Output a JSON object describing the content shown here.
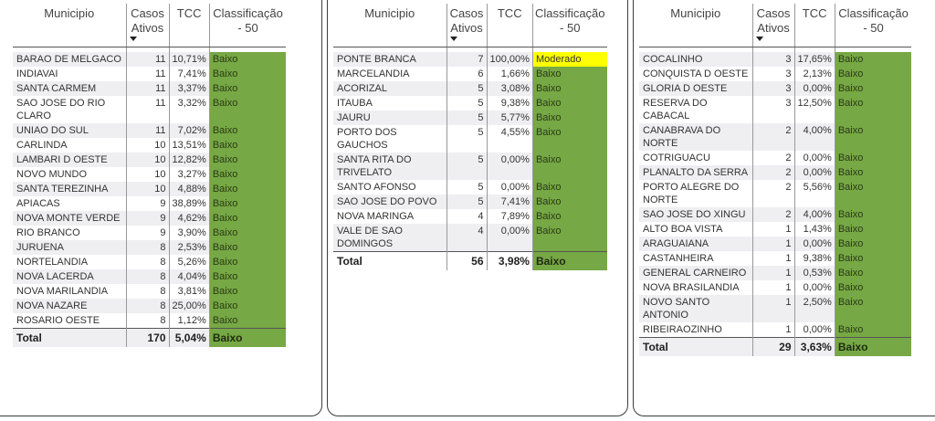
{
  "headers": {
    "municipio": "Municipio",
    "casos_line1": "Casos",
    "casos_line2": "Ativos",
    "tcc": "TCC",
    "class_line1": "Classificação",
    "class_line2": "- 50"
  },
  "colors": {
    "baixo": "#76a845",
    "moderado": "#ffff00"
  },
  "tables": [
    {
      "rows": [
        {
          "municipio": "BARAO DE MELGACO",
          "casos": "11",
          "tcc": "10,71%",
          "classificacao": "Baixo"
        },
        {
          "municipio": "INDIAVAI",
          "casos": "11",
          "tcc": "7,41%",
          "classificacao": "Baixo"
        },
        {
          "municipio": "SANTA CARMEM",
          "casos": "11",
          "tcc": "3,37%",
          "classificacao": "Baixo"
        },
        {
          "municipio": "SAO JOSE DO RIO CLARO",
          "casos": "11",
          "tcc": "3,32%",
          "classificacao": "Baixo"
        },
        {
          "municipio": "UNIAO DO SUL",
          "casos": "11",
          "tcc": "7,02%",
          "classificacao": "Baixo"
        },
        {
          "municipio": "CARLINDA",
          "casos": "10",
          "tcc": "13,51%",
          "classificacao": "Baixo"
        },
        {
          "municipio": "LAMBARI D OESTE",
          "casos": "10",
          "tcc": "12,82%",
          "classificacao": "Baixo"
        },
        {
          "municipio": "NOVO MUNDO",
          "casos": "10",
          "tcc": "3,27%",
          "classificacao": "Baixo"
        },
        {
          "municipio": "SANTA TEREZINHA",
          "casos": "10",
          "tcc": "4,88%",
          "classificacao": "Baixo"
        },
        {
          "municipio": "APIACAS",
          "casos": "9",
          "tcc": "38,89%",
          "classificacao": "Baixo"
        },
        {
          "municipio": "NOVA MONTE VERDE",
          "casos": "9",
          "tcc": "4,62%",
          "classificacao": "Baixo"
        },
        {
          "municipio": "RIO BRANCO",
          "casos": "9",
          "tcc": "3,90%",
          "classificacao": "Baixo"
        },
        {
          "municipio": "JURUENA",
          "casos": "8",
          "tcc": "2,53%",
          "classificacao": "Baixo"
        },
        {
          "municipio": "NORTELANDIA",
          "casos": "8",
          "tcc": "5,26%",
          "classificacao": "Baixo"
        },
        {
          "municipio": "NOVA LACERDA",
          "casos": "8",
          "tcc": "4,04%",
          "classificacao": "Baixo"
        },
        {
          "municipio": "NOVA MARILANDIA",
          "casos": "8",
          "tcc": "3,81%",
          "classificacao": "Baixo"
        },
        {
          "municipio": "NOVA NAZARE",
          "casos": "8",
          "tcc": "25,00%",
          "classificacao": "Baixo"
        },
        {
          "municipio": "ROSARIO OESTE",
          "casos": "8",
          "tcc": "1,12%",
          "classificacao": "Baixo"
        }
      ],
      "total": {
        "label": "Total",
        "casos": "170",
        "tcc": "5,04%",
        "classificacao": "Baixo"
      }
    },
    {
      "rows": [
        {
          "municipio": "PONTE BRANCA",
          "casos": "7",
          "tcc": "100,00%",
          "classificacao": "Moderado"
        },
        {
          "municipio": "MARCELANDIA",
          "casos": "6",
          "tcc": "1,66%",
          "classificacao": "Baixo"
        },
        {
          "municipio": "ACORIZAL",
          "casos": "5",
          "tcc": "3,08%",
          "classificacao": "Baixo"
        },
        {
          "municipio": "ITAUBA",
          "casos": "5",
          "tcc": "9,38%",
          "classificacao": "Baixo"
        },
        {
          "municipio": "JAURU",
          "casos": "5",
          "tcc": "5,77%",
          "classificacao": "Baixo"
        },
        {
          "municipio": "PORTO DOS GAUCHOS",
          "casos": "5",
          "tcc": "4,55%",
          "classificacao": "Baixo"
        },
        {
          "municipio": "SANTA RITA DO TRIVELATO",
          "casos": "5",
          "tcc": "0,00%",
          "classificacao": "Baixo"
        },
        {
          "municipio": "SANTO AFONSO",
          "casos": "5",
          "tcc": "0,00%",
          "classificacao": "Baixo"
        },
        {
          "municipio": "SAO JOSE DO POVO",
          "casos": "5",
          "tcc": "7,41%",
          "classificacao": "Baixo"
        },
        {
          "municipio": "NOVA MARINGA",
          "casos": "4",
          "tcc": "7,89%",
          "classificacao": "Baixo"
        },
        {
          "municipio": "VALE DE SAO DOMINGOS",
          "casos": "4",
          "tcc": "0,00%",
          "classificacao": "Baixo"
        }
      ],
      "total": {
        "label": "Total",
        "casos": "56",
        "tcc": "3,98%",
        "classificacao": "Baixo"
      }
    },
    {
      "rows": [
        {
          "municipio": "COCALINHO",
          "casos": "3",
          "tcc": "17,65%",
          "classificacao": "Baixo"
        },
        {
          "municipio": "CONQUISTA D OESTE",
          "casos": "3",
          "tcc": "2,13%",
          "classificacao": "Baixo"
        },
        {
          "municipio": "GLORIA D OESTE",
          "casos": "3",
          "tcc": "0,00%",
          "classificacao": "Baixo"
        },
        {
          "municipio": "RESERVA DO CABACAL",
          "casos": "3",
          "tcc": "12,50%",
          "classificacao": "Baixo"
        },
        {
          "municipio": "CANABRAVA DO NORTE",
          "casos": "2",
          "tcc": "4,00%",
          "classificacao": "Baixo"
        },
        {
          "municipio": "COTRIGUACU",
          "casos": "2",
          "tcc": "0,00%",
          "classificacao": "Baixo"
        },
        {
          "municipio": "PLANALTO DA SERRA",
          "casos": "2",
          "tcc": "0,00%",
          "classificacao": "Baixo"
        },
        {
          "municipio": "PORTO ALEGRE DO NORTE",
          "casos": "2",
          "tcc": "5,56%",
          "classificacao": "Baixo"
        },
        {
          "municipio": "SAO JOSE DO XINGU",
          "casos": "2",
          "tcc": "4,00%",
          "classificacao": "Baixo"
        },
        {
          "municipio": "ALTO BOA VISTA",
          "casos": "1",
          "tcc": "1,43%",
          "classificacao": "Baixo"
        },
        {
          "municipio": "ARAGUAIANA",
          "casos": "1",
          "tcc": "0,00%",
          "classificacao": "Baixo"
        },
        {
          "municipio": "CASTANHEIRA",
          "casos": "1",
          "tcc": "9,38%",
          "classificacao": "Baixo"
        },
        {
          "municipio": "GENERAL CARNEIRO",
          "casos": "1",
          "tcc": "0,53%",
          "classificacao": "Baixo"
        },
        {
          "municipio": "NOVA BRASILANDIA",
          "casos": "1",
          "tcc": "0,00%",
          "classificacao": "Baixo"
        },
        {
          "municipio": "NOVO SANTO ANTONIO",
          "casos": "1",
          "tcc": "2,50%",
          "classificacao": "Baixo"
        },
        {
          "municipio": "RIBEIRAOZINHO",
          "casos": "1",
          "tcc": "0,00%",
          "classificacao": "Baixo"
        }
      ],
      "total": {
        "label": "Total",
        "casos": "29",
        "tcc": "3,63%",
        "classificacao": "Baixo"
      }
    }
  ]
}
